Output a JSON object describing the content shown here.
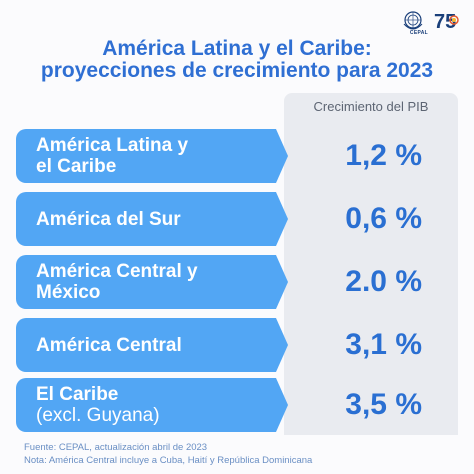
{
  "header": {
    "title_line1": "América Latina y el Caribe:",
    "title_line2": "proyecciones de crecimiento para 2023",
    "org_label": "CEPAL",
    "anniversary_number": "75"
  },
  "chart_data": {
    "type": "table",
    "title": "América Latina y el Caribe: proyecciones de crecimiento para 2023",
    "column_header": "Crecimiento del PIB",
    "rows": [
      {
        "label_line1": "América Latina y",
        "label_line2": "el Caribe",
        "value": 1.2,
        "value_text": "1,2 %"
      },
      {
        "label_line1": "América del Sur",
        "label_line2": "",
        "value": 0.6,
        "value_text": "0,6 %"
      },
      {
        "label_line1": "América Central y",
        "label_line2": "México",
        "value": 2.0,
        "value_text": "2.0 %"
      },
      {
        "label_line1": "América Central",
        "label_line2": "",
        "value": 3.1,
        "value_text": "3,1 %"
      },
      {
        "label_line1": "El Caribe",
        "label_line2": "(excl. Guyana)",
        "value": 3.5,
        "value_text": "3,5 %"
      }
    ]
  },
  "footer": {
    "source": "Fuente: CEPAL, actualización abril de 2023",
    "note": "Nota: América Central incluye a Cuba, Haití y República Dominicana"
  },
  "colors": {
    "accent": "#2f6fd3",
    "label_bg": "#52a6f4",
    "panel_bg": "#e9ebf0"
  }
}
